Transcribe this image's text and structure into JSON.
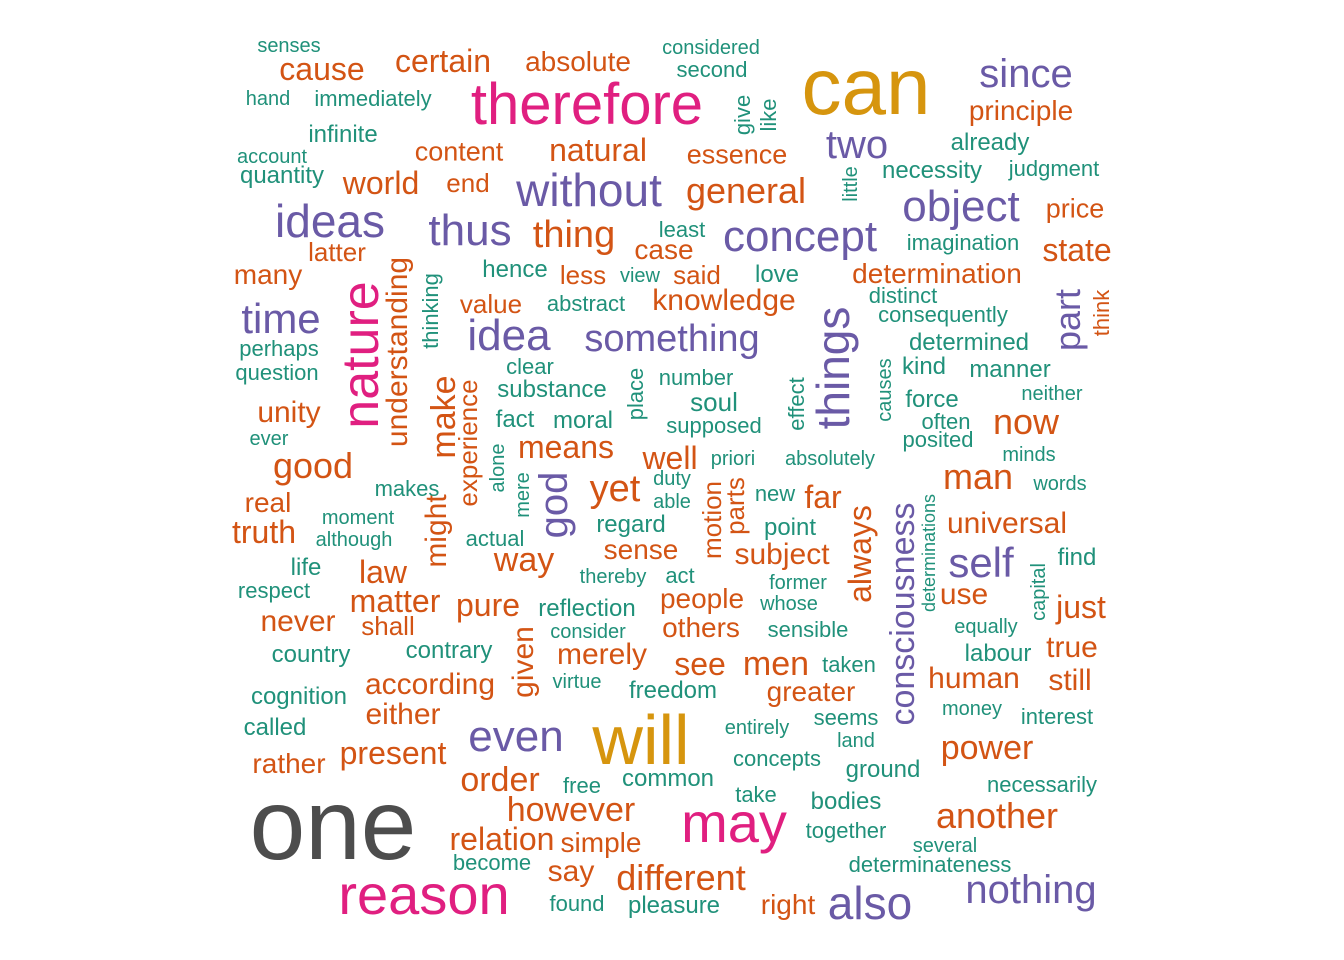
{
  "palette": {
    "gray": "#4d4d4d",
    "gold": "#d6950e",
    "magenta": "#e01f80",
    "purple": "#6a5aa6",
    "orange": "#d35414",
    "teal": "#20917a"
  },
  "words": [
    {
      "text": "one",
      "color": "gray"
    },
    {
      "text": "can",
      "color": "gold"
    },
    {
      "text": "will",
      "color": "gold"
    },
    {
      "text": "therefore",
      "color": "magenta"
    },
    {
      "text": "reason",
      "color": "magenta"
    },
    {
      "text": "may",
      "color": "magenta"
    },
    {
      "text": "nature",
      "color": "magenta"
    },
    {
      "text": "without",
      "color": "purple"
    },
    {
      "text": "ideas",
      "color": "purple"
    },
    {
      "text": "since",
      "color": "purple"
    },
    {
      "text": "object",
      "color": "purple"
    },
    {
      "text": "concept",
      "color": "purple"
    },
    {
      "text": "thus",
      "color": "purple"
    },
    {
      "text": "idea",
      "color": "purple"
    },
    {
      "text": "something",
      "color": "purple"
    },
    {
      "text": "things",
      "color": "purple"
    },
    {
      "text": "time",
      "color": "purple"
    },
    {
      "text": "two",
      "color": "purple"
    },
    {
      "text": "even",
      "color": "purple"
    },
    {
      "text": "self",
      "color": "purple"
    },
    {
      "text": "part",
      "color": "purple"
    },
    {
      "text": "god",
      "color": "purple"
    },
    {
      "text": "also",
      "color": "purple"
    },
    {
      "text": "nothing",
      "color": "purple"
    },
    {
      "text": "consciousness",
      "color": "purple"
    },
    {
      "text": "cause",
      "color": "orange"
    },
    {
      "text": "certain",
      "color": "orange"
    },
    {
      "text": "absolute",
      "color": "orange"
    },
    {
      "text": "principle",
      "color": "orange"
    },
    {
      "text": "content",
      "color": "orange"
    },
    {
      "text": "natural",
      "color": "orange"
    },
    {
      "text": "essence",
      "color": "orange"
    },
    {
      "text": "world",
      "color": "orange"
    },
    {
      "text": "end",
      "color": "orange"
    },
    {
      "text": "general",
      "color": "orange"
    },
    {
      "text": "price",
      "color": "orange"
    },
    {
      "text": "thing",
      "color": "orange"
    },
    {
      "text": "case",
      "color": "orange"
    },
    {
      "text": "latter",
      "color": "orange"
    },
    {
      "text": "state",
      "color": "orange"
    },
    {
      "text": "many",
      "color": "orange"
    },
    {
      "text": "less",
      "color": "orange"
    },
    {
      "text": "said",
      "color": "orange"
    },
    {
      "text": "determination",
      "color": "orange"
    },
    {
      "text": "value",
      "color": "orange"
    },
    {
      "text": "knowledge",
      "color": "orange"
    },
    {
      "text": "think",
      "color": "orange"
    },
    {
      "text": "understanding",
      "color": "orange"
    },
    {
      "text": "make",
      "color": "orange"
    },
    {
      "text": "experience",
      "color": "orange"
    },
    {
      "text": "unity",
      "color": "orange"
    },
    {
      "text": "now",
      "color": "orange"
    },
    {
      "text": "means",
      "color": "orange"
    },
    {
      "text": "good",
      "color": "orange"
    },
    {
      "text": "well",
      "color": "orange"
    },
    {
      "text": "man",
      "color": "orange"
    },
    {
      "text": "yet",
      "color": "orange"
    },
    {
      "text": "far",
      "color": "orange"
    },
    {
      "text": "real",
      "color": "orange"
    },
    {
      "text": "truth",
      "color": "orange"
    },
    {
      "text": "might",
      "color": "orange"
    },
    {
      "text": "motion",
      "color": "orange"
    },
    {
      "text": "parts",
      "color": "orange"
    },
    {
      "text": "universal",
      "color": "orange"
    },
    {
      "text": "always",
      "color": "orange"
    },
    {
      "text": "sense",
      "color": "orange"
    },
    {
      "text": "way",
      "color": "orange"
    },
    {
      "text": "subject",
      "color": "orange"
    },
    {
      "text": "law",
      "color": "orange"
    },
    {
      "text": "matter",
      "color": "orange"
    },
    {
      "text": "pure",
      "color": "orange"
    },
    {
      "text": "people",
      "color": "orange"
    },
    {
      "text": "use",
      "color": "orange"
    },
    {
      "text": "just",
      "color": "orange"
    },
    {
      "text": "never",
      "color": "orange"
    },
    {
      "text": "shall",
      "color": "orange"
    },
    {
      "text": "others",
      "color": "orange"
    },
    {
      "text": "given",
      "color": "orange"
    },
    {
      "text": "merely",
      "color": "orange"
    },
    {
      "text": "see",
      "color": "orange"
    },
    {
      "text": "men",
      "color": "orange"
    },
    {
      "text": "true",
      "color": "orange"
    },
    {
      "text": "according",
      "color": "orange"
    },
    {
      "text": "greater",
      "color": "orange"
    },
    {
      "text": "human",
      "color": "orange"
    },
    {
      "text": "still",
      "color": "orange"
    },
    {
      "text": "either",
      "color": "orange"
    },
    {
      "text": "power",
      "color": "orange"
    },
    {
      "text": "rather",
      "color": "orange"
    },
    {
      "text": "present",
      "color": "orange"
    },
    {
      "text": "order",
      "color": "orange"
    },
    {
      "text": "however",
      "color": "orange"
    },
    {
      "text": "another",
      "color": "orange"
    },
    {
      "text": "relation",
      "color": "orange"
    },
    {
      "text": "simple",
      "color": "orange"
    },
    {
      "text": "say",
      "color": "orange"
    },
    {
      "text": "different",
      "color": "orange"
    },
    {
      "text": "right",
      "color": "orange"
    },
    {
      "text": "senses",
      "color": "teal"
    },
    {
      "text": "considered",
      "color": "teal"
    },
    {
      "text": "second",
      "color": "teal"
    },
    {
      "text": "hand",
      "color": "teal"
    },
    {
      "text": "immediately",
      "color": "teal"
    },
    {
      "text": "give",
      "color": "teal"
    },
    {
      "text": "like",
      "color": "teal"
    },
    {
      "text": "infinite",
      "color": "teal"
    },
    {
      "text": "already",
      "color": "teal"
    },
    {
      "text": "account",
      "color": "teal"
    },
    {
      "text": "necessity",
      "color": "teal"
    },
    {
      "text": "judgment",
      "color": "teal"
    },
    {
      "text": "quantity",
      "color": "teal"
    },
    {
      "text": "little",
      "color": "teal"
    },
    {
      "text": "least",
      "color": "teal"
    },
    {
      "text": "imagination",
      "color": "teal"
    },
    {
      "text": "hence",
      "color": "teal"
    },
    {
      "text": "view",
      "color": "teal"
    },
    {
      "text": "love",
      "color": "teal"
    },
    {
      "text": "thinking",
      "color": "teal"
    },
    {
      "text": "abstract",
      "color": "teal"
    },
    {
      "text": "distinct",
      "color": "teal"
    },
    {
      "text": "consequently",
      "color": "teal"
    },
    {
      "text": "perhaps",
      "color": "teal"
    },
    {
      "text": "clear",
      "color": "teal"
    },
    {
      "text": "determined",
      "color": "teal"
    },
    {
      "text": "question",
      "color": "teal"
    },
    {
      "text": "substance",
      "color": "teal"
    },
    {
      "text": "place",
      "color": "teal"
    },
    {
      "text": "number",
      "color": "teal"
    },
    {
      "text": "kind",
      "color": "teal"
    },
    {
      "text": "manner",
      "color": "teal"
    },
    {
      "text": "causes",
      "color": "teal"
    },
    {
      "text": "neither",
      "color": "teal"
    },
    {
      "text": "soul",
      "color": "teal"
    },
    {
      "text": "effect",
      "color": "teal"
    },
    {
      "text": "force",
      "color": "teal"
    },
    {
      "text": "fact",
      "color": "teal"
    },
    {
      "text": "moral",
      "color": "teal"
    },
    {
      "text": "supposed",
      "color": "teal"
    },
    {
      "text": "often",
      "color": "teal"
    },
    {
      "text": "ever",
      "color": "teal"
    },
    {
      "text": "posited",
      "color": "teal"
    },
    {
      "text": "minds",
      "color": "teal"
    },
    {
      "text": "alone",
      "color": "teal"
    },
    {
      "text": "priori",
      "color": "teal"
    },
    {
      "text": "absolutely",
      "color": "teal"
    },
    {
      "text": "words",
      "color": "teal"
    },
    {
      "text": "makes",
      "color": "teal"
    },
    {
      "text": "duty",
      "color": "teal"
    },
    {
      "text": "mere",
      "color": "teal"
    },
    {
      "text": "able",
      "color": "teal"
    },
    {
      "text": "new",
      "color": "teal"
    },
    {
      "text": "moment",
      "color": "teal"
    },
    {
      "text": "regard",
      "color": "teal"
    },
    {
      "text": "point",
      "color": "teal"
    },
    {
      "text": "although",
      "color": "teal"
    },
    {
      "text": "actual",
      "color": "teal"
    },
    {
      "text": "determinations",
      "color": "teal"
    },
    {
      "text": "find",
      "color": "teal"
    },
    {
      "text": "life",
      "color": "teal"
    },
    {
      "text": "thereby",
      "color": "teal"
    },
    {
      "text": "act",
      "color": "teal"
    },
    {
      "text": "former",
      "color": "teal"
    },
    {
      "text": "capital",
      "color": "teal"
    },
    {
      "text": "respect",
      "color": "teal"
    },
    {
      "text": "reflection",
      "color": "teal"
    },
    {
      "text": "whose",
      "color": "teal"
    },
    {
      "text": "consider",
      "color": "teal"
    },
    {
      "text": "sensible",
      "color": "teal"
    },
    {
      "text": "equally",
      "color": "teal"
    },
    {
      "text": "country",
      "color": "teal"
    },
    {
      "text": "contrary",
      "color": "teal"
    },
    {
      "text": "labour",
      "color": "teal"
    },
    {
      "text": "taken",
      "color": "teal"
    },
    {
      "text": "cognition",
      "color": "teal"
    },
    {
      "text": "virtue",
      "color": "teal"
    },
    {
      "text": "freedom",
      "color": "teal"
    },
    {
      "text": "money",
      "color": "teal"
    },
    {
      "text": "called",
      "color": "teal"
    },
    {
      "text": "entirely",
      "color": "teal"
    },
    {
      "text": "seems",
      "color": "teal"
    },
    {
      "text": "interest",
      "color": "teal"
    },
    {
      "text": "land",
      "color": "teal"
    },
    {
      "text": "concepts",
      "color": "teal"
    },
    {
      "text": "ground",
      "color": "teal"
    },
    {
      "text": "common",
      "color": "teal"
    },
    {
      "text": "free",
      "color": "teal"
    },
    {
      "text": "necessarily",
      "color": "teal"
    },
    {
      "text": "take",
      "color": "teal"
    },
    {
      "text": "bodies",
      "color": "teal"
    },
    {
      "text": "together",
      "color": "teal"
    },
    {
      "text": "become",
      "color": "teal"
    },
    {
      "text": "several",
      "color": "teal"
    },
    {
      "text": "determinateness",
      "color": "teal"
    },
    {
      "text": "found",
      "color": "teal"
    },
    {
      "text": "pleasure",
      "color": "teal"
    }
  ]
}
